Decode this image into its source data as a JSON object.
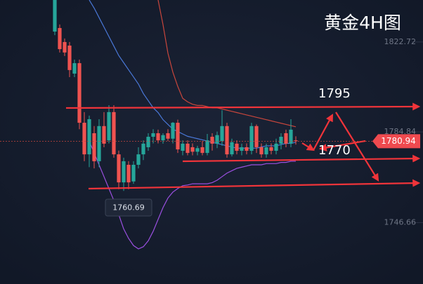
{
  "chart_data": {
    "type": "candlestick",
    "title": "黄金4H图",
    "up_color": "#26a69a",
    "down_color": "#ef5350",
    "open": [
      1827.1,
      1828.6,
      1822.7,
      1821.2,
      1809.4,
      1813.8,
      1788.7,
      1775.4,
      1784.3,
      1772.5,
      1787.3,
      1781.3,
      1793.2,
      1775.4,
      1763.6,
      1771,
      1764,
      1771,
      1775.4,
      1778.4,
      1782.8,
      1784.3,
      1781.3,
      1784.3,
      1782,
      1788.7,
      1776.9,
      1779.9,
      1778.4,
      1776.5,
      1778.4,
      1776,
      1782.8,
      1779.9,
      1781,
      1787.3,
      1775.4,
      1779.9,
      1776.9,
      1778.4,
      1776.9,
      1787.3,
      1778.4,
      1775.4,
      1778.4,
      1776.9,
      1779.9,
      1784.3,
      1779.9,
      1781.3
    ],
    "high": [
      1840.4,
      1830.1,
      1824.2,
      1822.7,
      1815.3,
      1815.3,
      1793.2,
      1791.7,
      1787.3,
      1790.2,
      1793.2,
      1796.1,
      1796.1,
      1777,
      1774,
      1772.5,
      1772.5,
      1778.4,
      1781.3,
      1784.3,
      1786,
      1785.8,
      1784.3,
      1786,
      1789,
      1790,
      1781.3,
      1781.3,
      1780,
      1779,
      1781,
      1784,
      1784.3,
      1785,
      1794,
      1788.7,
      1782,
      1781.3,
      1779.9,
      1780,
      1788.7,
      1788,
      1780,
      1779.9,
      1780,
      1782,
      1784.3,
      1785.8,
      1790.2,
      1783
    ],
    "low": [
      1825.6,
      1818.3,
      1816.8,
      1807.9,
      1807.9,
      1786,
      1772.5,
      1770,
      1769.5,
      1770,
      1778.4,
      1780,
      1774,
      1760.7,
      1760,
      1760.69,
      1763,
      1769.5,
      1773,
      1776.9,
      1780,
      1780,
      1779.9,
      1781,
      1780,
      1776,
      1775,
      1775,
      1775,
      1775,
      1775,
      1775,
      1777,
      1778,
      1779,
      1774,
      1774.5,
      1775.4,
      1775,
      1775.4,
      1775.4,
      1776,
      1774,
      1774,
      1775.4,
      1775.4,
      1777.5,
      1778.4,
      1778.4,
      1779.5
    ],
    "close": [
      1840.4,
      1819.7,
      1818.3,
      1810.9,
      1813.8,
      1788.7,
      1775.4,
      1790.2,
      1772.5,
      1787.3,
      1779.9,
      1793.2,
      1775.4,
      1763.6,
      1772.5,
      1763.6,
      1771,
      1775.4,
      1779.9,
      1782.8,
      1784.3,
      1781.3,
      1783.5,
      1782,
      1788.7,
      1777.5,
      1779.9,
      1776,
      1776.5,
      1778,
      1776,
      1781.3,
      1779.9,
      1783.5,
      1787.3,
      1775.4,
      1780.5,
      1776.9,
      1778.4,
      1776.9,
      1787.3,
      1778.4,
      1775.4,
      1778.4,
      1776.9,
      1779.9,
      1782.8,
      1779.9,
      1785.8,
      1780.94
    ],
    "series": [
      {
        "color": "#4a78d8",
        "values": [
          null,
          null,
          null,
          null,
          null,
          null,
          null,
          1840.4,
          1837,
          1833,
          1829,
          1825,
          1821,
          1817,
          1814,
          1811,
          1808,
          1805,
          1801,
          1798,
          1795,
          1793,
          1790,
          1788,
          1786,
          1785,
          1784,
          1783,
          1782.5,
          1782,
          1781.5,
          1781,
          1780.5,
          1780,
          1779.5,
          1779,
          1778.5,
          1778,
          1778,
          1778,
          1778,
          1778,
          1778.5,
          1779,
          1779,
          1779,
          1779.5,
          1780,
          1780,
          1780.5
        ]
      },
      {
        "color": "#c8463c",
        "values": [
          null,
          null,
          null,
          null,
          null,
          null,
          null,
          null,
          null,
          null,
          null,
          null,
          null,
          null,
          null,
          null,
          null,
          null,
          null,
          null,
          null,
          1840.4,
          1830,
          1818,
          1810,
          1804,
          1799,
          1797.5,
          1796.5,
          1796,
          1796,
          1795.5,
          1795,
          1795,
          1794.5,
          1794,
          1793.5,
          1793,
          1792.5,
          1792,
          1791.5,
          1791,
          1790.5,
          1790,
          1789.5,
          1789,
          1788.5,
          1788,
          1787.5,
          1787
        ]
      },
      {
        "color": "#9a4fe0",
        "values": [
          null,
          null,
          null,
          null,
          null,
          null,
          null,
          1781,
          1776,
          1771,
          1766,
          1761,
          1756,
          1750,
          1744,
          1740,
          1737,
          1735.6,
          1736.5,
          1739,
          1743,
          1748,
          1753,
          1757,
          1759.5,
          1761,
          1762.2,
          1762.5,
          1763,
          1763,
          1763,
          1763,
          1763.5,
          1764.5,
          1766,
          1767.5,
          1768.5,
          1769.5,
          1770,
          1770.5,
          1771,
          1771,
          1771,
          1771.5,
          1771.5,
          1771.5,
          1772,
          1772,
          1772.5,
          1772.5
        ]
      }
    ],
    "ylim": [
      1720.8,
      1840.4
    ],
    "yticks": [
      1822.72,
      1784.84,
      1746.66
    ],
    "grid": false,
    "last_price": 1780.94,
    "levels": [
      1795,
      1770
    ],
    "low_label": 1760.69
  }
}
